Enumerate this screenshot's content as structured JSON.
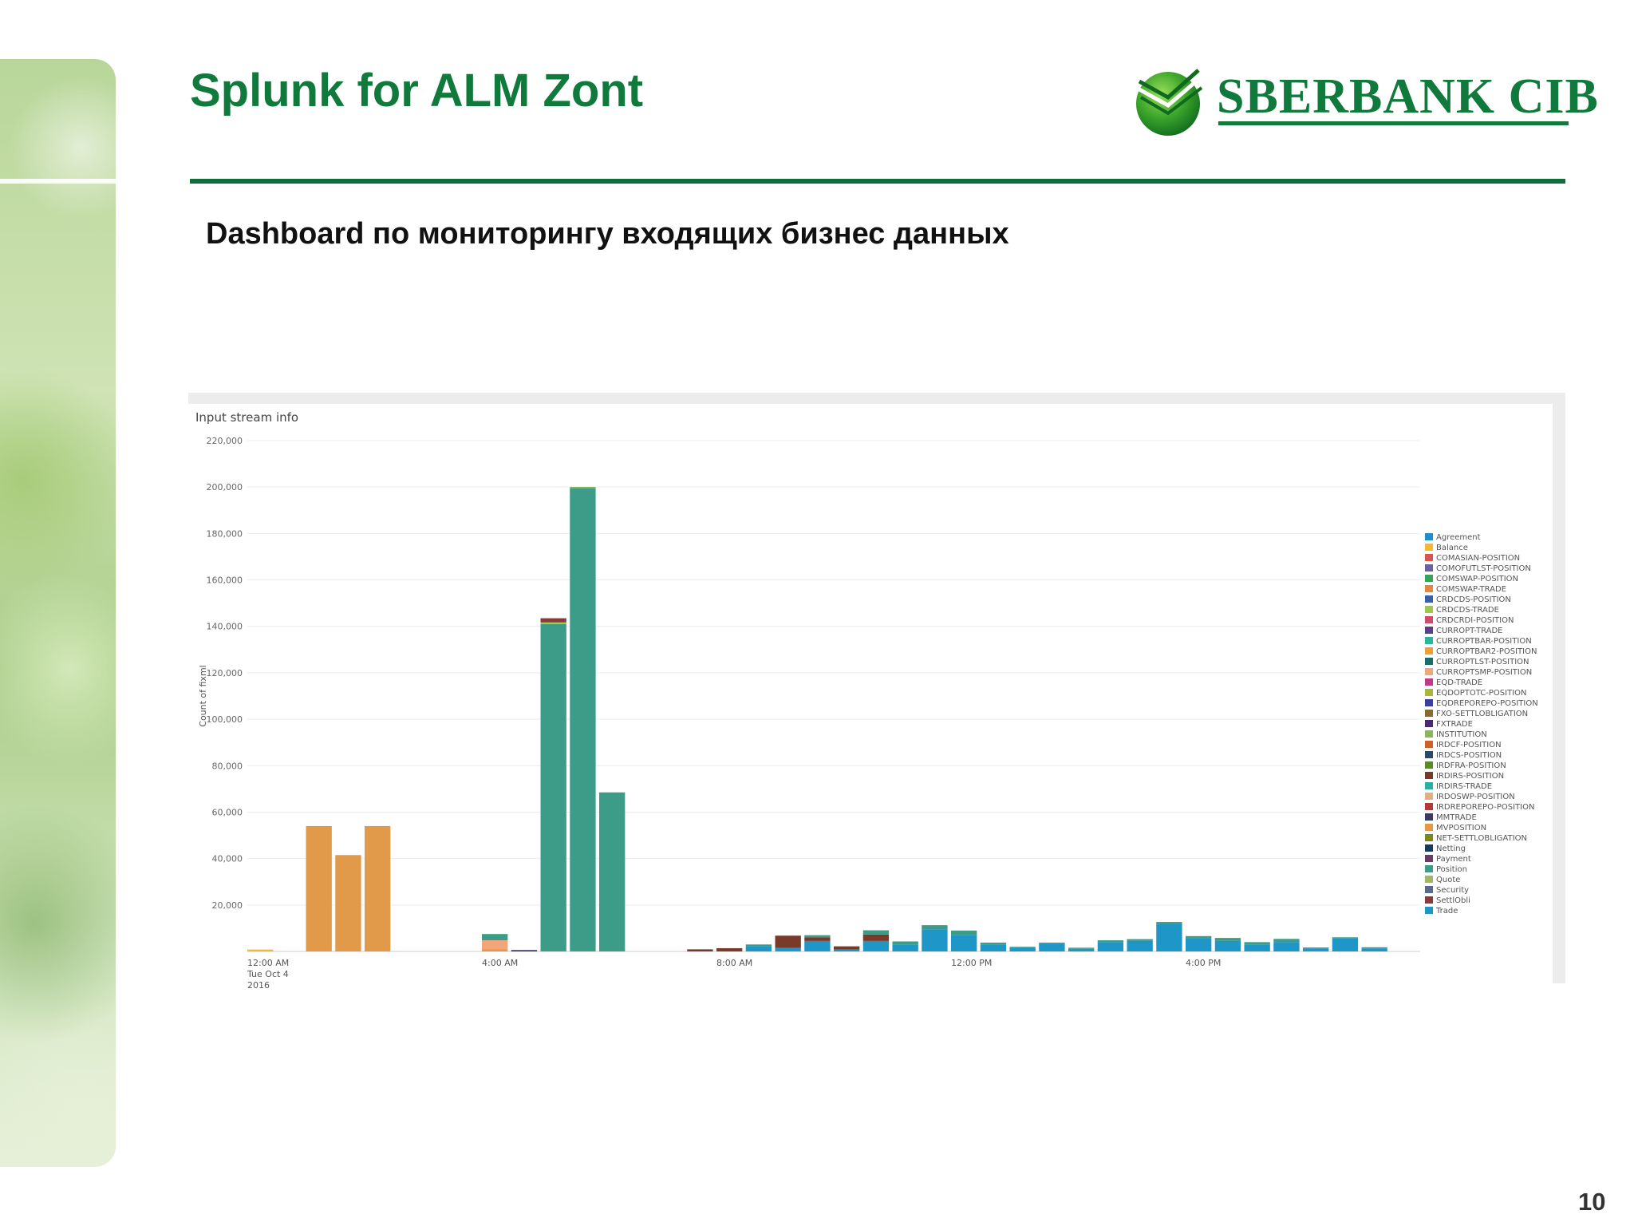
{
  "slide": {
    "title": "Splunk for ALM Zont",
    "subtitle": "Dashboard по мониторингу входящих бизнес данных",
    "page_number": "10"
  },
  "logo": {
    "text": "SBERBANK CIB",
    "icon": "sberbank-logo-icon",
    "color": "#0f7a3c"
  },
  "panel": {
    "title": "Input stream info"
  },
  "colors": {
    "brand_green": "#0f7a3c",
    "rule_green": "#0f6e3a"
  },
  "chart_data": {
    "type": "bar",
    "stacked": true,
    "ylabel": "Count of fixml",
    "ylim": [
      0,
      220000
    ],
    "yticks": [
      20000,
      40000,
      60000,
      80000,
      100000,
      120000,
      140000,
      160000,
      180000,
      200000,
      220000
    ],
    "ytick_labels": [
      "20,000",
      "40,000",
      "60,000",
      "80,000",
      "100,000",
      "120,000",
      "140,000",
      "160,000",
      "180,000",
      "200,000",
      "220,000"
    ],
    "x_bucket": "30 min",
    "x_start": "00:00",
    "x_end": "19:30",
    "x_tick_labels": [
      {
        "lines": [
          "12:00 AM",
          "Tue Oct 4",
          "2016"
        ],
        "at": "00:00"
      },
      {
        "lines": [
          "4:00 AM"
        ],
        "at": "04:00"
      },
      {
        "lines": [
          "8:00 AM"
        ],
        "at": "08:00"
      },
      {
        "lines": [
          "12:00 PM"
        ],
        "at": "12:00"
      },
      {
        "lines": [
          "4:00 PM"
        ],
        "at": "16:00"
      }
    ],
    "grid": true,
    "legend_position": "right",
    "legend": [
      {
        "name": "Agreement",
        "color": "#1f8fc7"
      },
      {
        "name": "Balance",
        "color": "#f2b82e"
      },
      {
        "name": "COMASIAN-POSITION",
        "color": "#d9534f"
      },
      {
        "name": "COMOFUTLST-POSITION",
        "color": "#6b5fa8"
      },
      {
        "name": "COMSWAP-POSITION",
        "color": "#3aa35a"
      },
      {
        "name": "COMSWAP-TRADE",
        "color": "#e8843c"
      },
      {
        "name": "CRDCDS-POSITION",
        "color": "#3a5ea8"
      },
      {
        "name": "CRDCDS-TRADE",
        "color": "#9fc74a"
      },
      {
        "name": "CRDCRDI-POSITION",
        "color": "#d04a6a"
      },
      {
        "name": "CURROPT-TRADE",
        "color": "#5a3f8c"
      },
      {
        "name": "CURROPTBAR-POSITION",
        "color": "#2bb59b"
      },
      {
        "name": "CURROPTBAR2-POSITION",
        "color": "#f0a030"
      },
      {
        "name": "CURROPTLST-POSITION",
        "color": "#1a6e6a"
      },
      {
        "name": "CURROPTSMP-POSITION",
        "color": "#f4a57a"
      },
      {
        "name": "EQD-TRADE",
        "color": "#c0398a"
      },
      {
        "name": "EQDOPTOTC-POSITION",
        "color": "#a8b838"
      },
      {
        "name": "EQDREPOREPO-POSITION",
        "color": "#3a3ea0"
      },
      {
        "name": "FXO-SETTLOBLIGATION",
        "color": "#8a6a2a"
      },
      {
        "name": "FXTRADE",
        "color": "#4a2a6a"
      },
      {
        "name": "INSTITUTION",
        "color": "#88b85a"
      },
      {
        "name": "IRDCF-POSITION",
        "color": "#d0602a"
      },
      {
        "name": "IRDCS-POSITION",
        "color": "#2a4a6a"
      },
      {
        "name": "IRDFRA-POSITION",
        "color": "#5a8a2a"
      },
      {
        "name": "IRDIRS-POSITION",
        "color": "#7a3a2a"
      },
      {
        "name": "IRDIRS-TRADE",
        "color": "#2ab0a0"
      },
      {
        "name": "IRDOSWP-POSITION",
        "color": "#e0b080"
      },
      {
        "name": "IRDREPOREPO-POSITION",
        "color": "#b03a3a"
      },
      {
        "name": "MMTRADE",
        "color": "#3a3a6a"
      },
      {
        "name": "MVPOSITION",
        "color": "#e09a4a"
      },
      {
        "name": "NET-SETTLOBLIGATION",
        "color": "#7a8a1a"
      },
      {
        "name": "Netting",
        "color": "#1a3a5a"
      },
      {
        "name": "Payment",
        "color": "#6a3a6a"
      },
      {
        "name": "Position",
        "color": "#3d9c88"
      },
      {
        "name": "Quote",
        "color": "#a0b860"
      },
      {
        "name": "Security",
        "color": "#5a6a8a"
      },
      {
        "name": "SettlObli",
        "color": "#8a3a3a"
      },
      {
        "name": "Trade",
        "color": "#1e96c8"
      }
    ],
    "bars": [
      {
        "x": "00:00",
        "segments": [
          {
            "series": "Balance",
            "value": 800
          }
        ]
      },
      {
        "x": "01:00",
        "segments": [
          {
            "series": "MVPOSITION",
            "value": 54000
          }
        ]
      },
      {
        "x": "01:30",
        "segments": [
          {
            "series": "MVPOSITION",
            "value": 41500
          }
        ]
      },
      {
        "x": "02:00",
        "segments": [
          {
            "series": "MVPOSITION",
            "value": 54000
          }
        ]
      },
      {
        "x": "04:00",
        "segments": [
          {
            "series": "MVPOSITION",
            "value": 1000
          },
          {
            "series": "CURROPTSMP-POSITION",
            "value": 3800
          },
          {
            "series": "Position",
            "value": 2700
          }
        ]
      },
      {
        "x": "04:30",
        "segments": [
          {
            "series": "MMTRADE",
            "value": 600
          }
        ]
      },
      {
        "x": "05:00",
        "segments": [
          {
            "series": "Position",
            "value": 141000
          },
          {
            "series": "CRDCDS-TRADE",
            "value": 700
          },
          {
            "series": "SettlObli",
            "value": 1800
          }
        ]
      },
      {
        "x": "05:30",
        "segments": [
          {
            "series": "Position",
            "value": 199500
          },
          {
            "series": "INSTITUTION",
            "value": 600
          }
        ]
      },
      {
        "x": "06:00",
        "segments": [
          {
            "series": "Position",
            "value": 68500
          }
        ]
      },
      {
        "x": "07:30",
        "segments": [
          {
            "series": "IRDIRS-POSITION",
            "value": 900
          }
        ]
      },
      {
        "x": "08:00",
        "segments": [
          {
            "series": "IRDIRS-POSITION",
            "value": 1400
          }
        ]
      },
      {
        "x": "08:30",
        "segments": [
          {
            "series": "Trade",
            "value": 2200
          },
          {
            "series": "Position",
            "value": 800
          }
        ]
      },
      {
        "x": "09:00",
        "segments": [
          {
            "series": "Trade",
            "value": 1500
          },
          {
            "series": "IRDIRS-POSITION",
            "value": 5300
          }
        ]
      },
      {
        "x": "09:30",
        "segments": [
          {
            "series": "Trade",
            "value": 4500
          },
          {
            "series": "IRDIRS-POSITION",
            "value": 1600
          },
          {
            "series": "Position",
            "value": 900
          }
        ]
      },
      {
        "x": "10:00",
        "segments": [
          {
            "series": "Trade",
            "value": 800
          },
          {
            "series": "IRDIRS-POSITION",
            "value": 1400
          }
        ]
      },
      {
        "x": "10:30",
        "segments": [
          {
            "series": "Trade",
            "value": 4500
          },
          {
            "series": "IRDIRS-POSITION",
            "value": 2800
          },
          {
            "series": "Position",
            "value": 1800
          }
        ]
      },
      {
        "x": "11:00",
        "segments": [
          {
            "series": "Trade",
            "value": 2800
          },
          {
            "series": "Position",
            "value": 1500
          }
        ]
      },
      {
        "x": "11:30",
        "segments": [
          {
            "series": "Trade",
            "value": 9500
          },
          {
            "series": "Position",
            "value": 1800
          }
        ]
      },
      {
        "x": "12:00",
        "segments": [
          {
            "series": "Trade",
            "value": 7000
          },
          {
            "series": "Position",
            "value": 2000
          }
        ]
      },
      {
        "x": "12:30",
        "segments": [
          {
            "series": "Trade",
            "value": 3000
          },
          {
            "series": "Position",
            "value": 800
          }
        ]
      },
      {
        "x": "13:00",
        "segments": [
          {
            "series": "Trade",
            "value": 1400
          },
          {
            "series": "Position",
            "value": 600
          }
        ]
      },
      {
        "x": "13:30",
        "segments": [
          {
            "series": "Trade",
            "value": 3400
          },
          {
            "series": "Position",
            "value": 400
          }
        ]
      },
      {
        "x": "14:00",
        "segments": [
          {
            "series": "Trade",
            "value": 1100
          },
          {
            "series": "Position",
            "value": 500
          }
        ]
      },
      {
        "x": "14:30",
        "segments": [
          {
            "series": "Trade",
            "value": 4000
          },
          {
            "series": "Position",
            "value": 800
          }
        ]
      },
      {
        "x": "15:00",
        "segments": [
          {
            "series": "Trade",
            "value": 4600
          },
          {
            "series": "Position",
            "value": 700
          }
        ]
      },
      {
        "x": "15:30",
        "segments": [
          {
            "series": "Trade",
            "value": 12000
          },
          {
            "series": "Position",
            "value": 700
          }
        ]
      },
      {
        "x": "16:00",
        "segments": [
          {
            "series": "Trade",
            "value": 5800
          },
          {
            "series": "Position",
            "value": 800
          }
        ]
      },
      {
        "x": "16:30",
        "segments": [
          {
            "series": "Trade",
            "value": 4500
          },
          {
            "series": "Position",
            "value": 1300
          }
        ]
      },
      {
        "x": "17:00",
        "segments": [
          {
            "series": "Trade",
            "value": 2800
          },
          {
            "series": "Position",
            "value": 1200
          }
        ]
      },
      {
        "x": "17:30",
        "segments": [
          {
            "series": "Trade",
            "value": 4000
          },
          {
            "series": "Position",
            "value": 1400
          }
        ]
      },
      {
        "x": "18:00",
        "segments": [
          {
            "series": "Trade",
            "value": 1300
          },
          {
            "series": "Position",
            "value": 400
          }
        ]
      },
      {
        "x": "18:30",
        "segments": [
          {
            "series": "Trade",
            "value": 5600
          },
          {
            "series": "Position",
            "value": 500
          }
        ]
      },
      {
        "x": "19:00",
        "segments": [
          {
            "series": "Trade",
            "value": 1300
          },
          {
            "series": "Position",
            "value": 500
          }
        ]
      }
    ]
  }
}
